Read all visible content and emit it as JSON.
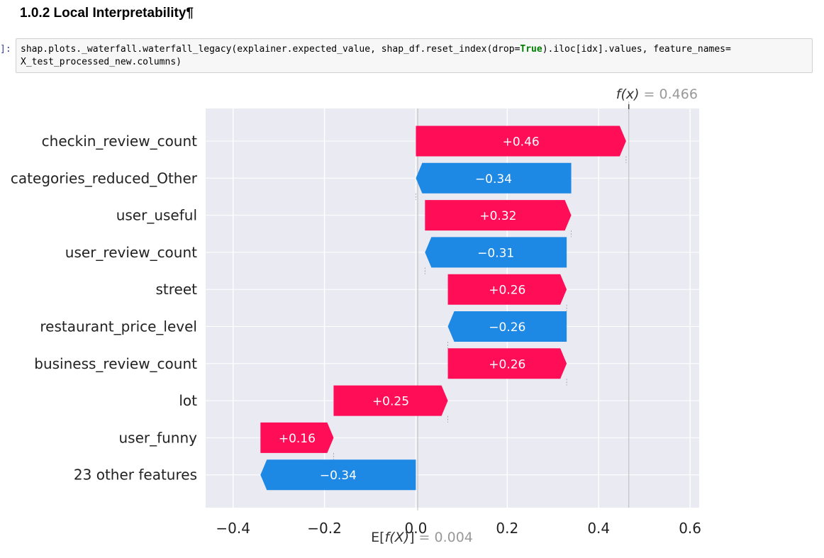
{
  "notebook": {
    "heading": "1.0.2 Local Interpretability¶",
    "cell_prompt": "]:",
    "code_line1_pre": "shap.plots._waterfall.waterfall_legacy(explainer.expected_value, shap_df.reset_index(drop=",
    "code_keyword": "True",
    "code_line1_post": ").iloc[idx].values, feature_names=",
    "code_line2": "X_test_processed_new.columns)"
  },
  "chart_data": {
    "type": "bar",
    "subtype": "shap-waterfall",
    "fx_label": "f(x) = 0.466",
    "efx_label": "E[f(X)] = 0.004",
    "base_value": 0.004,
    "final_value": 0.466,
    "xlim": [
      -0.46,
      0.62
    ],
    "xticks": [
      -0.4,
      -0.2,
      0.0,
      0.2,
      0.4,
      0.6
    ],
    "xtick_labels": [
      "−0.4",
      "−0.2",
      "0.0",
      "0.2",
      "0.4",
      "0.6"
    ],
    "grid": true,
    "colors": {
      "positive": "#ff0d57",
      "negative": "#1e88e5",
      "plot_bg": "#eaeaf2",
      "grid": "#ffffff"
    },
    "bars": [
      {
        "feature": "checkin_review_count",
        "start": 0.0,
        "end": 0.46,
        "label": "+0.46"
      },
      {
        "feature": "categories_reduced_Other",
        "start": 0.34,
        "end": 0.0,
        "label": "−0.34"
      },
      {
        "feature": "user_useful",
        "start": 0.02,
        "end": 0.34,
        "label": "+0.32"
      },
      {
        "feature": "user_review_count",
        "start": 0.33,
        "end": 0.02,
        "label": "−0.31"
      },
      {
        "feature": "street",
        "start": 0.07,
        "end": 0.33,
        "label": "+0.26"
      },
      {
        "feature": "restaurant_price_level",
        "start": 0.33,
        "end": 0.07,
        "label": "−0.26"
      },
      {
        "feature": "business_review_count",
        "start": 0.07,
        "end": 0.33,
        "label": "+0.26"
      },
      {
        "feature": "lot",
        "start": -0.18,
        "end": 0.07,
        "label": "+0.25"
      },
      {
        "feature": "user_funny",
        "start": -0.34,
        "end": -0.18,
        "label": "+0.16"
      },
      {
        "feature": "23 other features",
        "start": 0.0,
        "end": -0.34,
        "label": "−0.34"
      }
    ]
  }
}
